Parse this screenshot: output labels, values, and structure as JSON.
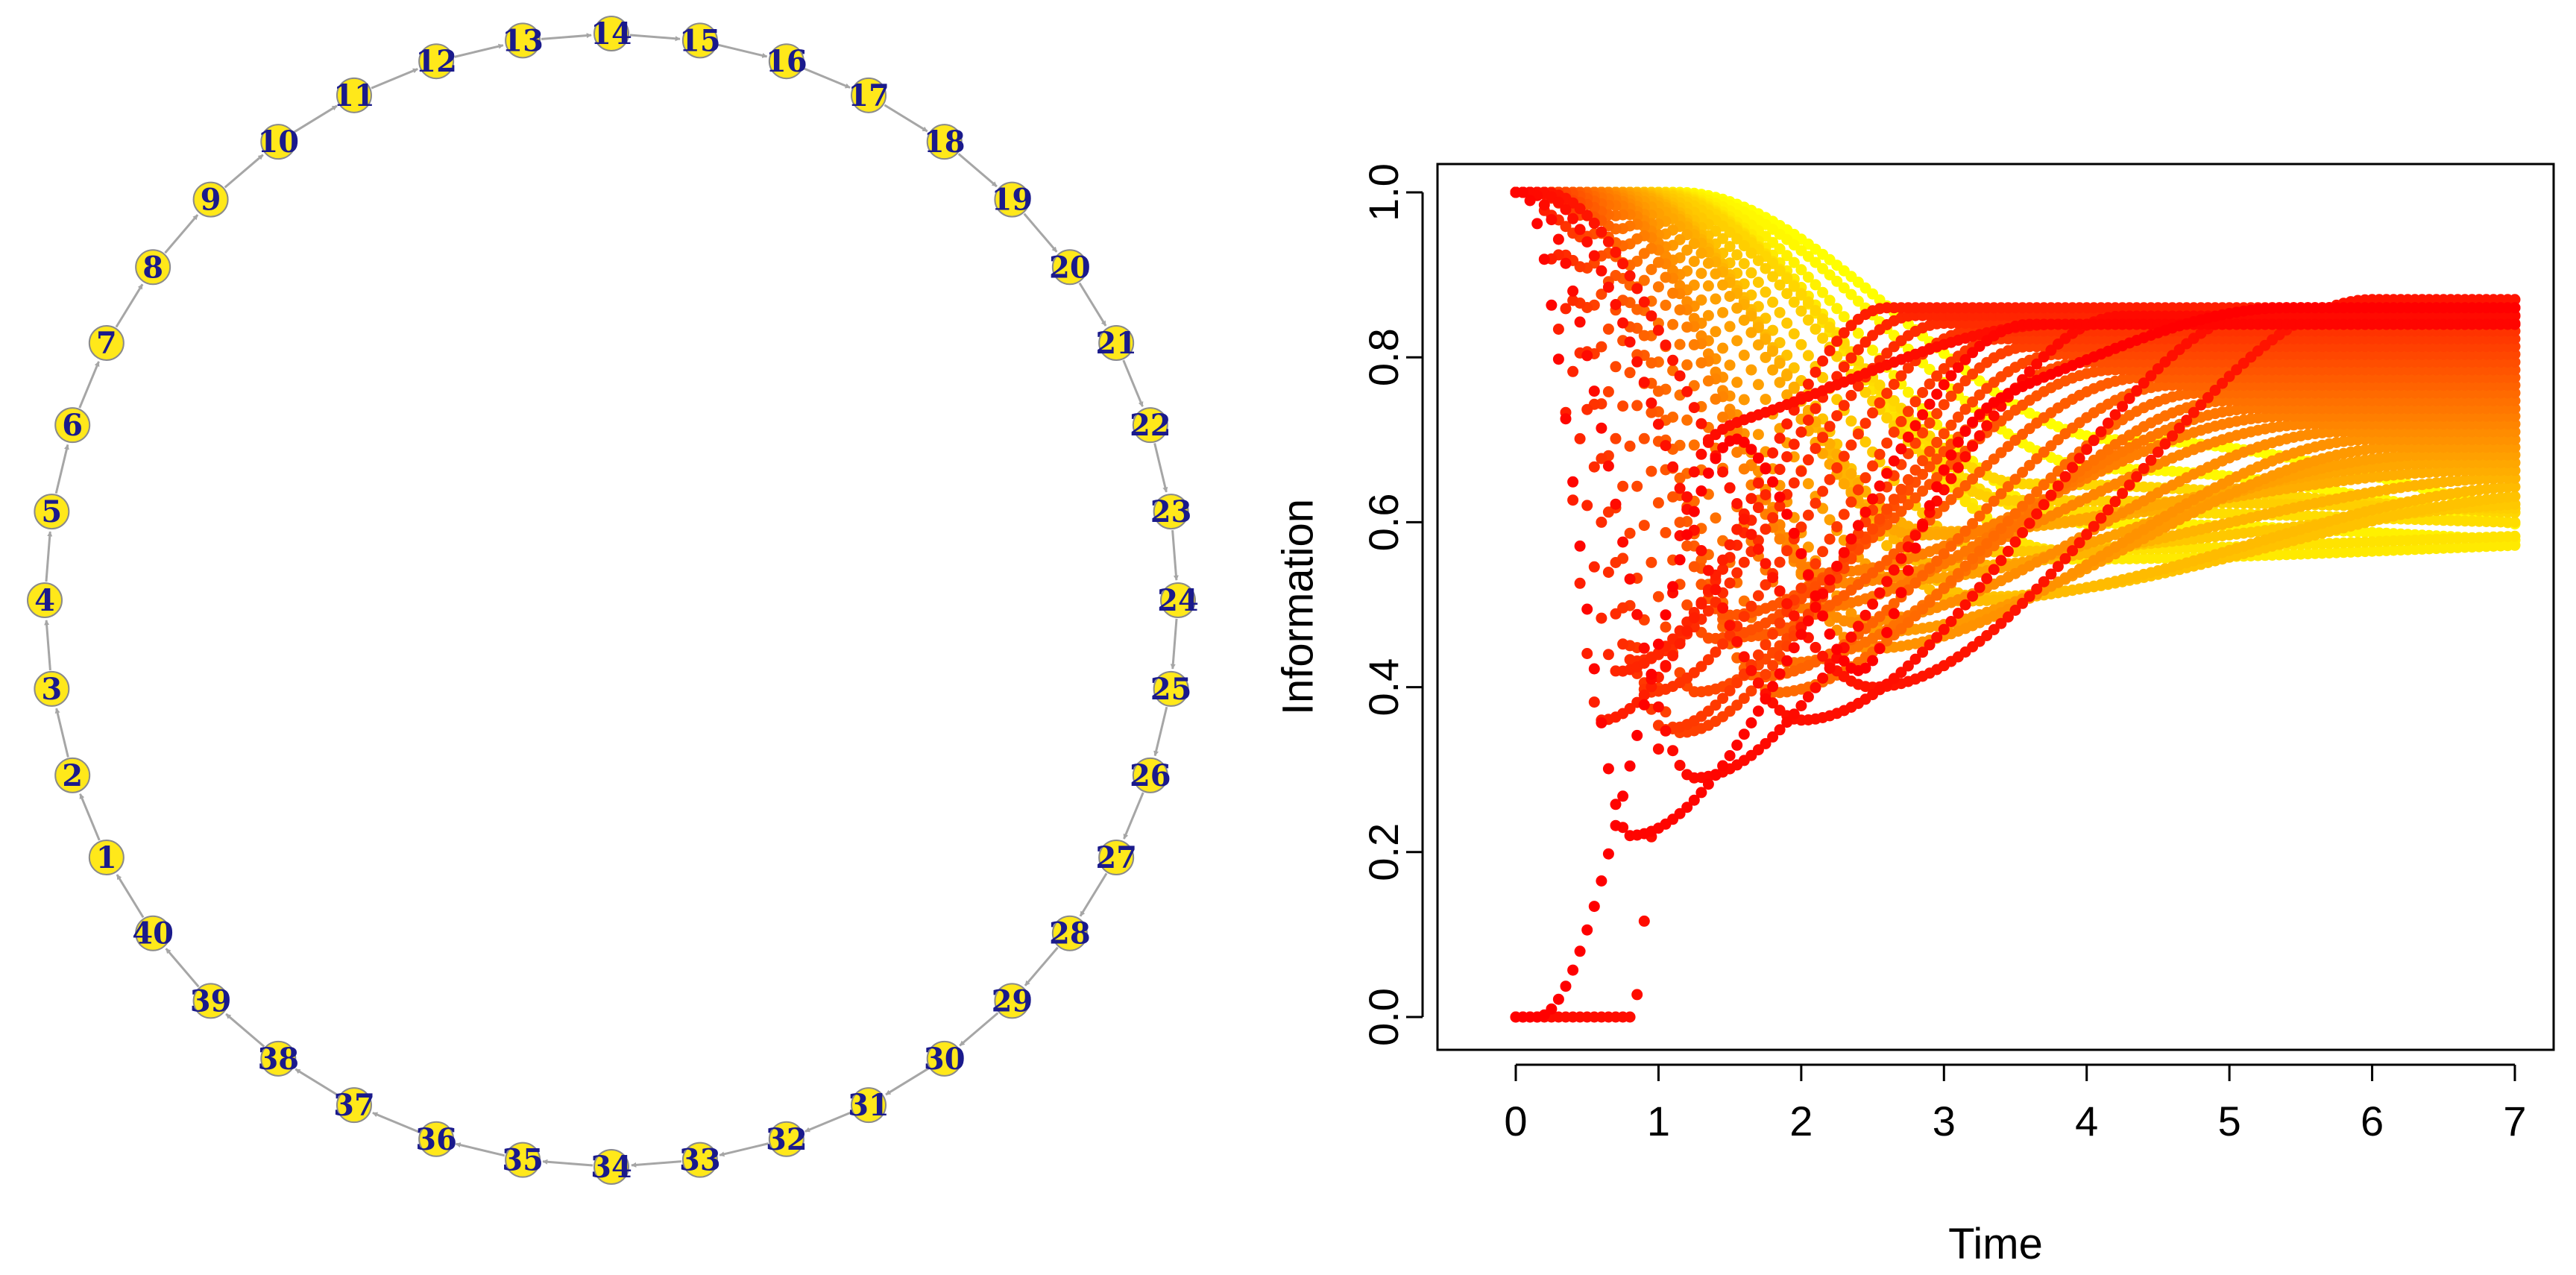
{
  "figure": {
    "panels": 2
  },
  "network": {
    "type": "directed-cycle",
    "layout": "circle",
    "node_count": 40,
    "nodes": [
      "1",
      "2",
      "3",
      "4",
      "5",
      "6",
      "7",
      "8",
      "9",
      "10",
      "11",
      "12",
      "13",
      "14",
      "15",
      "16",
      "17",
      "18",
      "19",
      "20",
      "21",
      "22",
      "23",
      "24",
      "25",
      "26",
      "27",
      "28",
      "29",
      "30",
      "31",
      "32",
      "33",
      "34",
      "35",
      "36",
      "37",
      "38",
      "39",
      "40"
    ],
    "edge_direction": "i -> i+1 (40 -> 1)",
    "node_color": "#FFE81A",
    "node_border_color": "#8a8a8a",
    "label_color": "#1a1a8c",
    "edge_color": "#a6a6a6"
  },
  "chart_data": {
    "type": "scatter",
    "title": "",
    "xlabel": "Time",
    "ylabel": "Information",
    "xlim": [
      0,
      7
    ],
    "ylim": [
      0,
      1
    ],
    "xticks": [
      "0",
      "1",
      "2",
      "3",
      "4",
      "5",
      "6",
      "7"
    ],
    "yticks": [
      "0.0",
      "0.2",
      "0.4",
      "0.6",
      "0.8",
      "1.0"
    ],
    "grid": false,
    "legend": "none",
    "time_step": 0.05,
    "palette": "heat: red (#FF0000) → orange → yellow (#FFFF00)",
    "colors": [
      "#FF0000",
      "#FF2A00",
      "#FF5500",
      "#FF8000",
      "#FFAA00",
      "#FFD400",
      "#FFFF00"
    ],
    "series_count": 40,
    "description": "One point series per node of the 40-node cycle. Two series start at 1.0 and two at 0.0; the rest start at 1.0 and fall later. Curves oscillate with dips at ~0.22 (t≈0.8), ~0.29 (t≈1.2), ~0.37 (t≈2.0), ~0.40 (t≈2.5), converging to 0.55–0.87 at t=7.",
    "endpoints_at_t7": {
      "min": 0.55,
      "max": 0.87
    }
  }
}
